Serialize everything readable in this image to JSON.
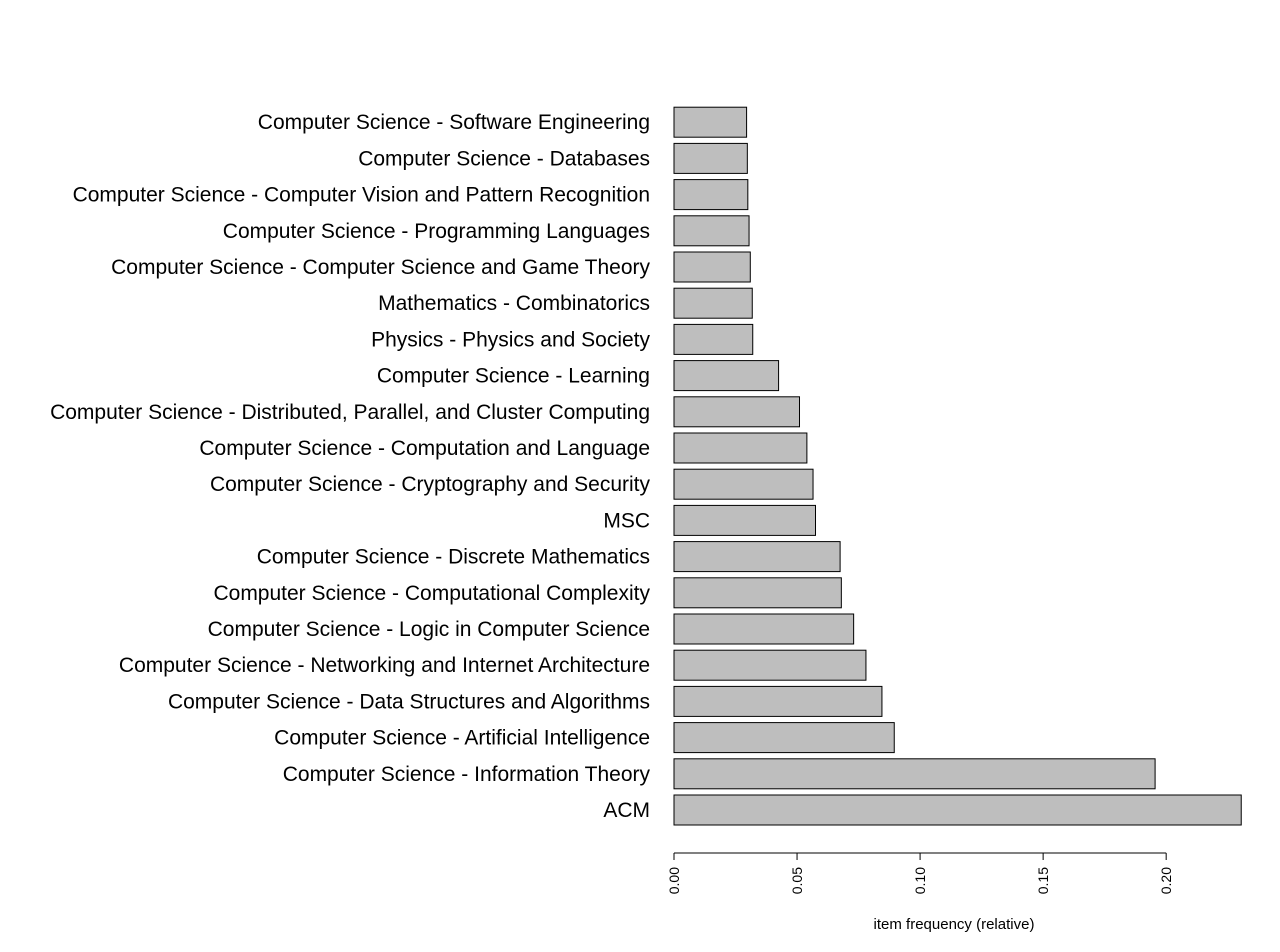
{
  "chart_data": {
    "type": "bar",
    "orientation": "horizontal",
    "title": "",
    "xlabel": "item frequency (relative)",
    "ylabel": "",
    "xlim": [
      0,
      0.23
    ],
    "x_ticks": [
      0.0,
      0.05,
      0.1,
      0.15,
      0.2
    ],
    "x_tick_labels": [
      "0.00",
      "0.05",
      "0.10",
      "0.15",
      "0.20"
    ],
    "grid": false,
    "bar_color": "#bebebe",
    "categories": [
      "ACM",
      "Computer Science - Information Theory",
      "Computer Science - Artificial Intelligence",
      "Computer Science - Data Structures and Algorithms",
      "Computer Science - Networking and Internet Architecture",
      "Computer Science - Logic in Computer Science",
      "Computer Science - Computational Complexity",
      "Computer Science - Discrete Mathematics",
      "MSC",
      "Computer Science - Cryptography and Security",
      "Computer Science - Computation and Language",
      "Computer Science - Distributed, Parallel, and Cluster Computing",
      "Computer Science - Learning",
      "Physics - Physics and Society",
      "Mathematics - Combinatorics",
      "Computer Science - Computer Science and Game Theory",
      "Computer Science - Programming Languages",
      "Computer Science - Computer Vision and Pattern Recognition",
      "Computer Science - Databases",
      "Computer Science - Software Engineering"
    ],
    "values": [
      0.2305,
      0.1955,
      0.0895,
      0.0845,
      0.078,
      0.073,
      0.068,
      0.0675,
      0.0575,
      0.0565,
      0.054,
      0.051,
      0.0425,
      0.032,
      0.0318,
      0.031,
      0.0305,
      0.03,
      0.0298,
      0.0295
    ]
  }
}
